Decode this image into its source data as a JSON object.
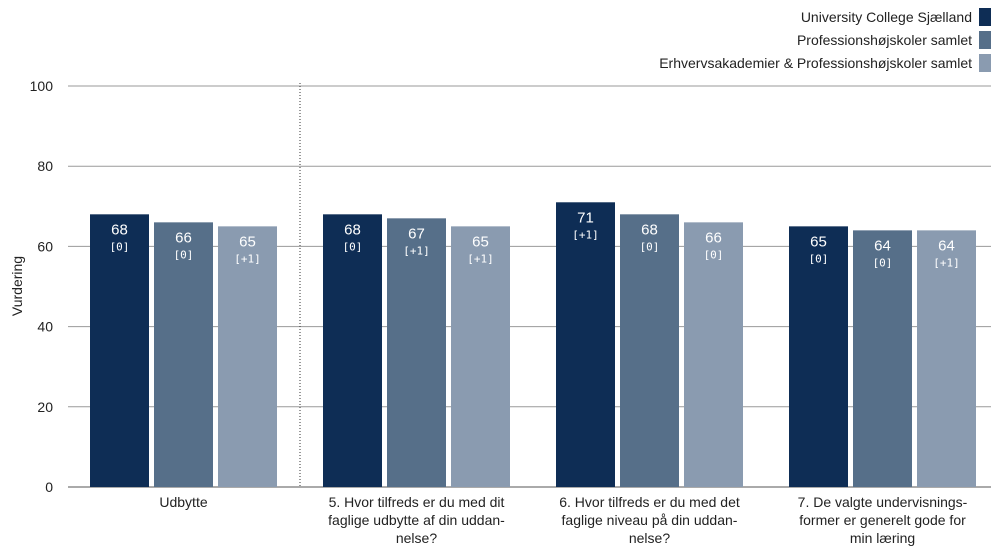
{
  "chart_data": {
    "type": "bar",
    "ylabel": "Vurdering",
    "ylim": [
      0,
      100
    ],
    "yticks": [
      0,
      20,
      40,
      60,
      80,
      100
    ],
    "grid": true,
    "legend_position": "top-right",
    "categories": [
      [
        "Udbytte"
      ],
      [
        "5. Hvor tilfreds er du med dit",
        "faglige udbytte af din uddan-",
        "nelse?"
      ],
      [
        "6. Hvor tilfreds er du med det",
        "faglige niveau på din uddan-",
        "nelse?"
      ],
      [
        "7. De valgte undervisnings-",
        "former er generelt gode for",
        "min læring"
      ]
    ],
    "series": [
      {
        "name": "University College Sjælland",
        "color": "#0e2d55",
        "values": [
          68,
          68,
          71,
          65
        ],
        "deltas": [
          "[0]",
          "[0]",
          "[+1]",
          "[0]"
        ]
      },
      {
        "name": "Professionshøjskoler samlet",
        "color": "#566f89",
        "values": [
          66,
          67,
          68,
          64
        ],
        "deltas": [
          "[0]",
          "[+1]",
          "[0]",
          "[0]"
        ]
      },
      {
        "name": "Erhvervsakademier & Professionshøjskoler samlet",
        "color": "#8a9bb0",
        "values": [
          65,
          65,
          66,
          64
        ],
        "deltas": [
          "[+1]",
          "[+1]",
          "[0]",
          "[+1]"
        ]
      }
    ],
    "separator_after_category": 0
  }
}
